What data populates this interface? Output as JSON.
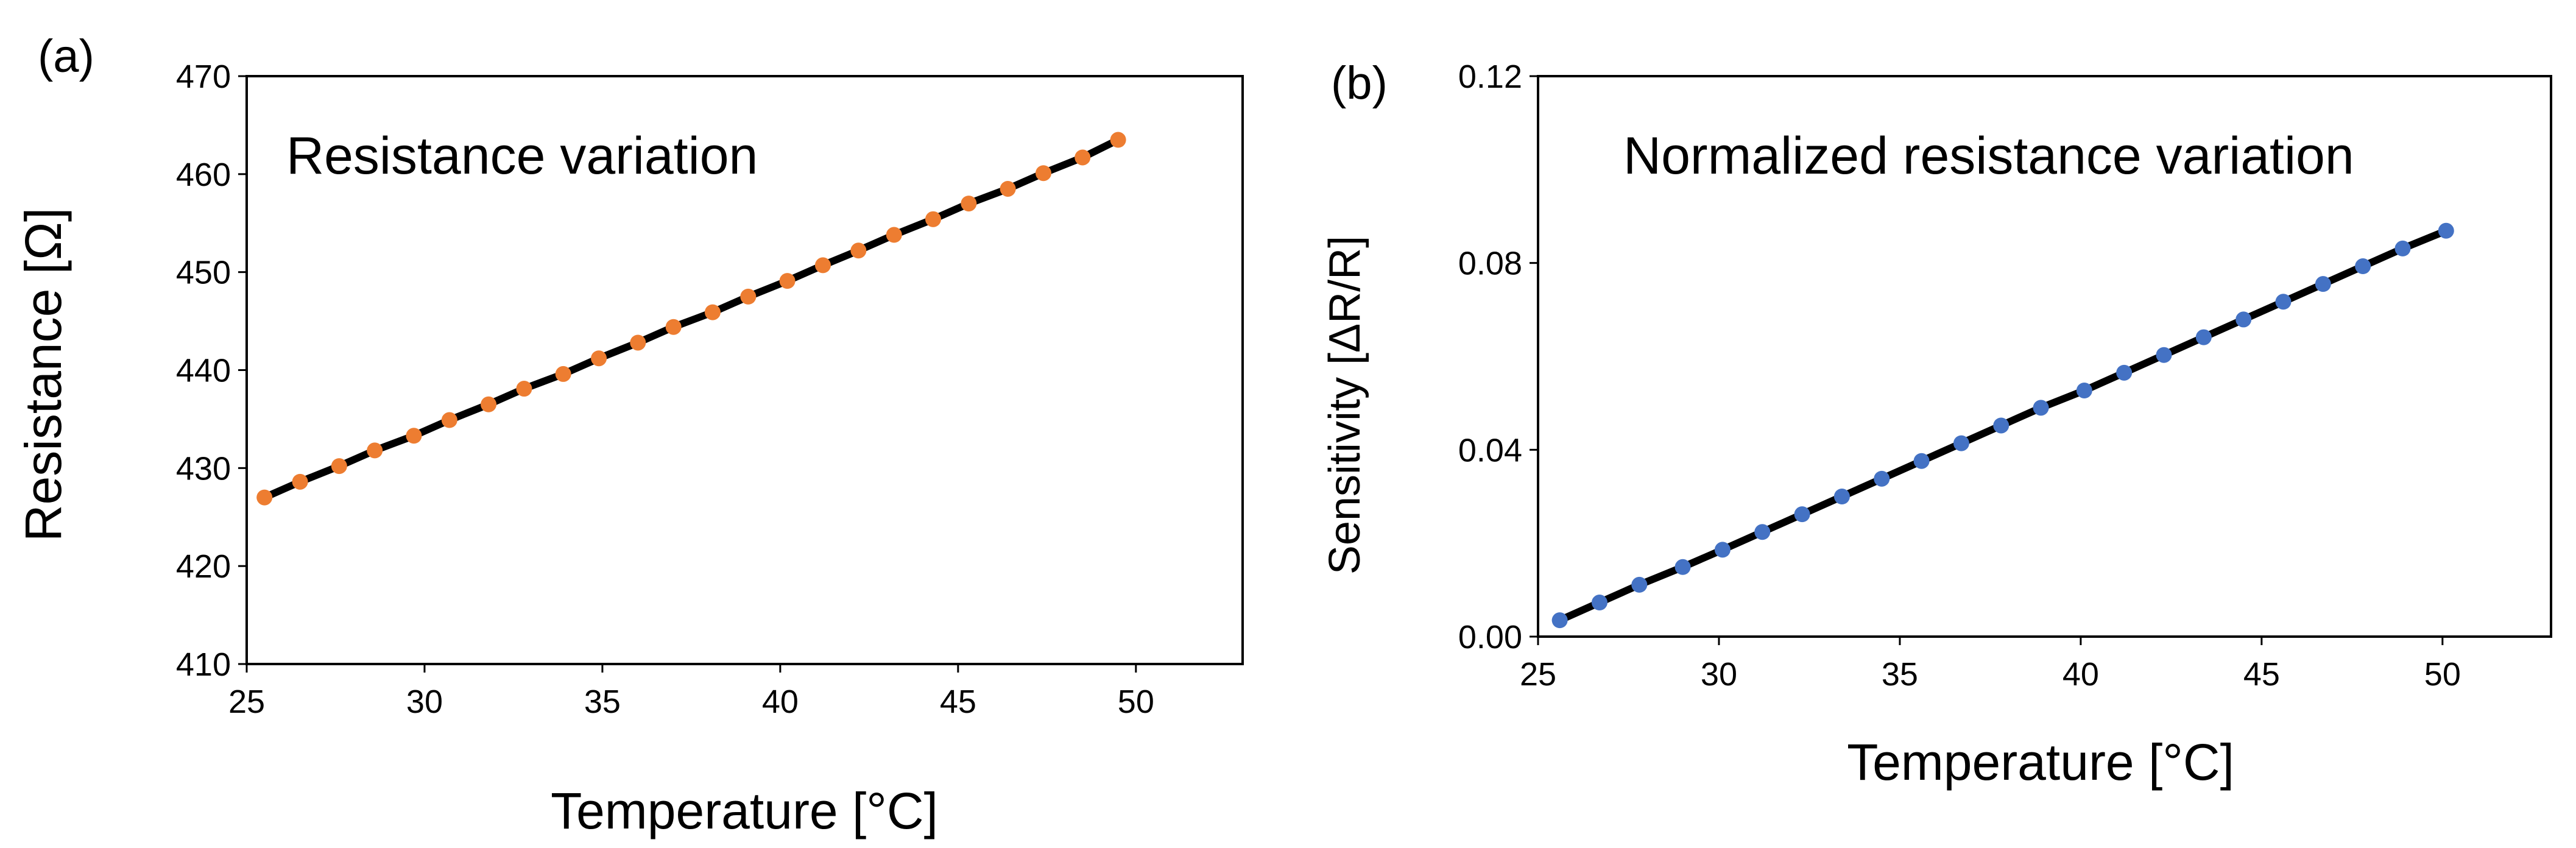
{
  "chart_data": [
    {
      "type": "scatter",
      "panel_label": "(a)",
      "annotation": "Resistance variation",
      "xlabel": "Temperature [°C]",
      "ylabel": "Resistance [Ω]",
      "xlim": [
        25,
        53
      ],
      "ylim": [
        410,
        470
      ],
      "xticks": [
        "25",
        "30",
        "35",
        "40",
        "45",
        "50"
      ],
      "yticks": [
        "410",
        "420",
        "430",
        "440",
        "450",
        "460",
        "470"
      ],
      "grid": false,
      "marker_color": "#ED7D31",
      "line_color": "#000000",
      "series": [
        {
          "name": "Resistance",
          "x": [
            25.5,
            26.5,
            27.6,
            28.6,
            29.7,
            30.7,
            31.8,
            32.8,
            33.9,
            34.9,
            36.0,
            37.0,
            38.1,
            39.1,
            40.2,
            41.2,
            42.2,
            43.2,
            44.3,
            45.3,
            46.4,
            47.4,
            48.5,
            49.5
          ],
          "y": [
            427.0,
            428.6,
            430.2,
            431.8,
            433.3,
            434.9,
            436.5,
            438.1,
            439.6,
            441.2,
            442.8,
            444.4,
            445.9,
            447.5,
            449.1,
            450.7,
            452.2,
            453.8,
            455.4,
            457.0,
            458.5,
            460.1,
            461.7,
            463.5
          ]
        }
      ]
    },
    {
      "type": "scatter",
      "panel_label": "(b)",
      "annotation": "Normalized resistance variation",
      "xlabel": "Temperature [°C]",
      "ylabel": "Sensitivity [ΔR/R]",
      "xlim": [
        25,
        53
      ],
      "ylim": [
        0.0,
        0.12
      ],
      "xticks": [
        "25",
        "30",
        "35",
        "40",
        "45",
        "50"
      ],
      "yticks": [
        "0.00",
        "0.04",
        "0.08",
        "0.12"
      ],
      "grid": false,
      "marker_color": "#4472C4",
      "line_color": "#000000",
      "series": [
        {
          "name": "Sensitivity",
          "x": [
            25.6,
            26.7,
            27.8,
            29.0,
            30.1,
            31.2,
            32.3,
            33.4,
            34.5,
            35.6,
            36.7,
            37.8,
            38.9,
            40.1,
            41.2,
            42.3,
            43.4,
            44.5,
            45.6,
            46.7,
            47.8,
            48.9,
            50.1
          ],
          "y": [
            0.0035,
            0.0073,
            0.0111,
            0.0149,
            0.0186,
            0.0224,
            0.0262,
            0.03,
            0.0338,
            0.0376,
            0.0414,
            0.0452,
            0.049,
            0.0527,
            0.0565,
            0.0603,
            0.0641,
            0.0679,
            0.0717,
            0.0755,
            0.0793,
            0.0831,
            0.0869
          ]
        }
      ]
    }
  ]
}
